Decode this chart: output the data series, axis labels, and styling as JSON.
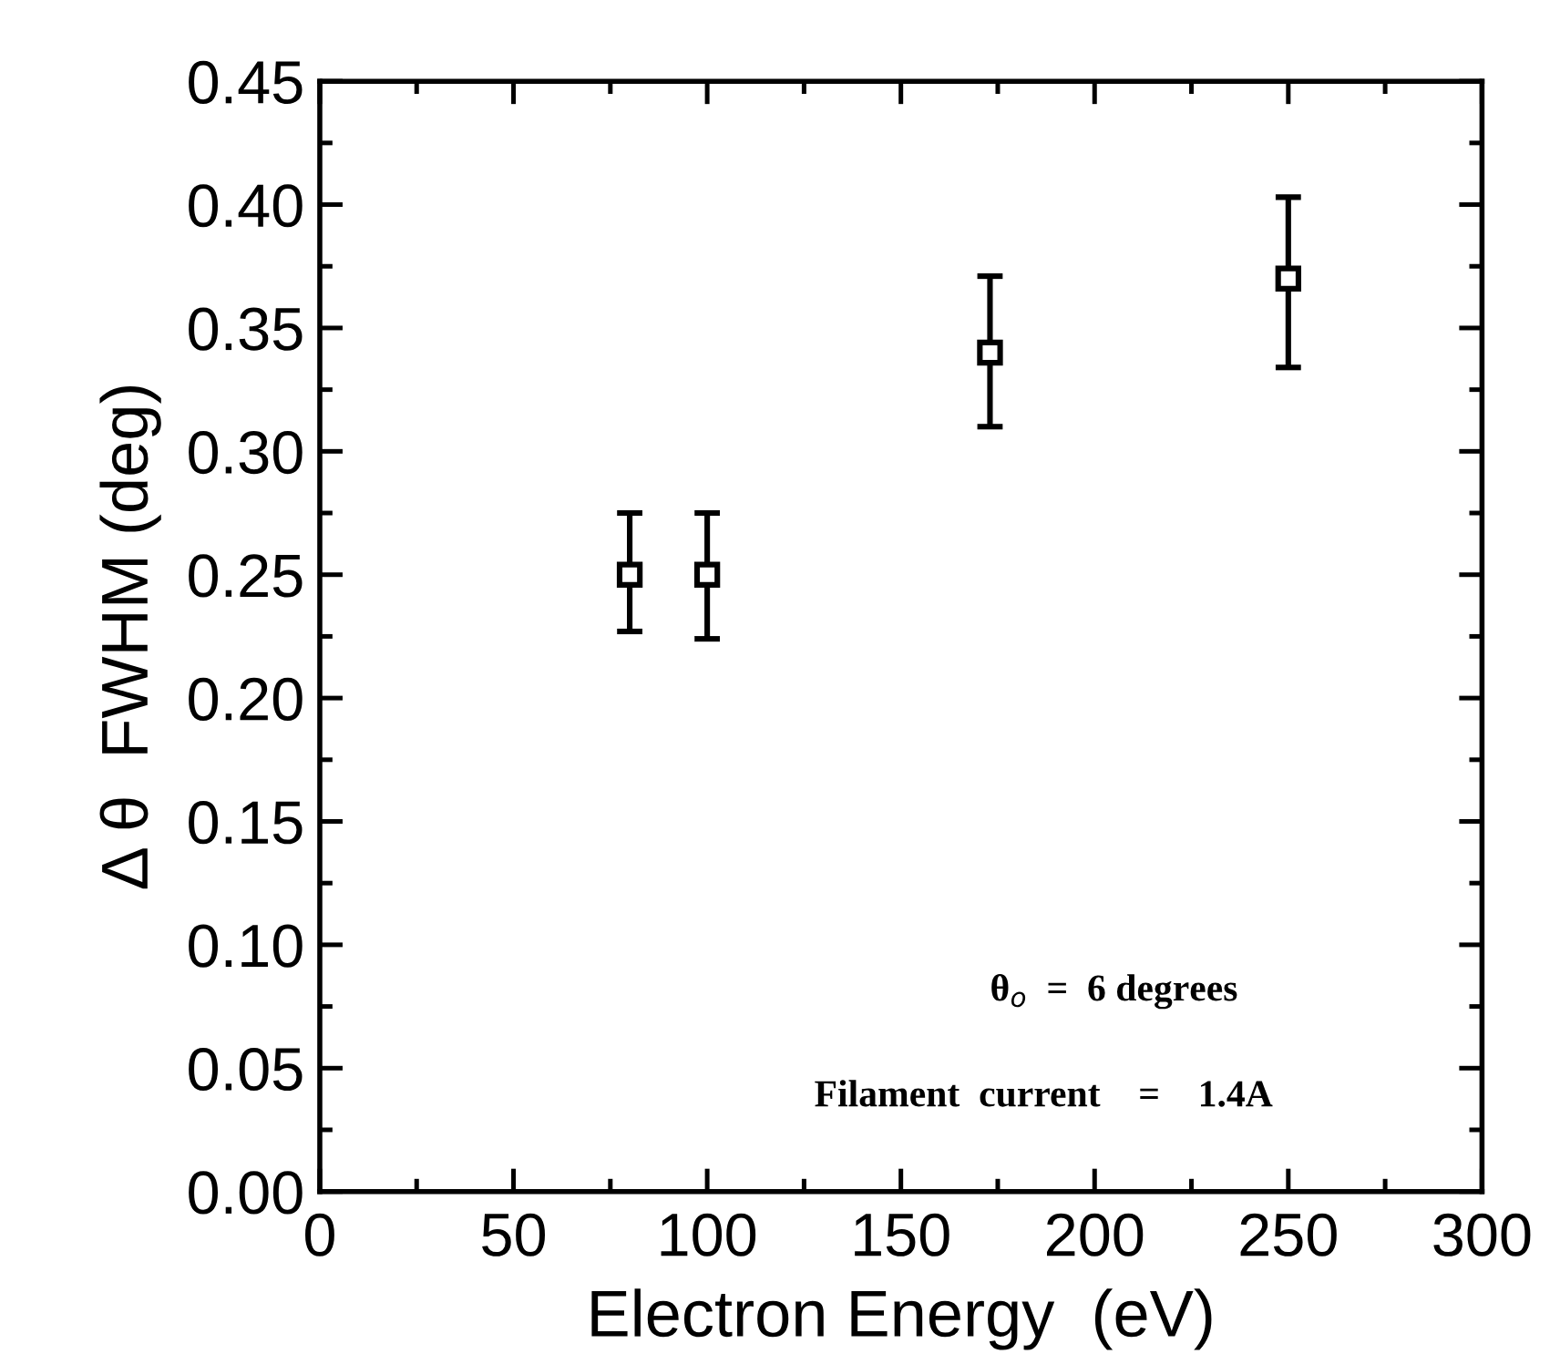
{
  "chart_data": {
    "type": "scatter",
    "xlabel": "Electron Energy  (eV)",
    "ylabel": "Δ θ  FWHM (deg)",
    "x": [
      80,
      100,
      173,
      250
    ],
    "series": [
      {
        "color": "#000000",
        "values": [
          0.25,
          0.25,
          0.34,
          0.37
        ],
        "errors": [
          [
            0.227,
            0.275
          ],
          [
            0.224,
            0.275
          ],
          [
            0.31,
            0.371
          ],
          [
            0.334,
            0.403
          ]
        ]
      }
    ],
    "xlim": [
      0,
      300
    ],
    "xticks": [
      0,
      50,
      100,
      150,
      200,
      250,
      300
    ],
    "ylim": [
      0,
      0.45
    ],
    "yticks": [
      {
        "value": 0,
        "label": "0.00"
      },
      {
        "value": 0.05,
        "label": "0.05"
      },
      {
        "value": 0.1,
        "label": "0.10"
      },
      {
        "value": 0.15,
        "label": "0.15"
      },
      {
        "value": 0.2,
        "label": "0.20"
      },
      {
        "value": 0.25,
        "label": "0.25"
      },
      {
        "value": 0.3,
        "label": "0.30"
      },
      {
        "value": 0.35,
        "label": "0.35"
      },
      {
        "value": 0.4,
        "label": "0.40"
      },
      {
        "value": 0.45,
        "label": "0.45"
      }
    ],
    "marker": "square",
    "grid": false,
    "annotations": [
      "θ$_{o}$  =  6 degrees",
      "Filament  current    =    1.4A"
    ]
  }
}
